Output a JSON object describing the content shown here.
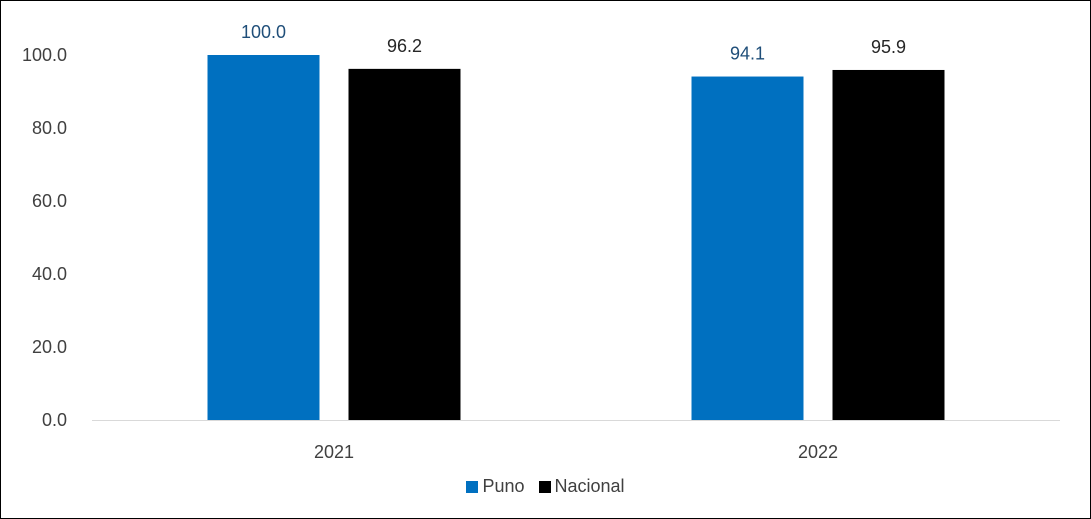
{
  "chart_data": {
    "type": "bar",
    "categories": [
      "2021",
      "2022"
    ],
    "series": [
      {
        "name": "Puno",
        "values": [
          100.0,
          94.1
        ],
        "color": "#0070c0",
        "label_color": "#1f4e79"
      },
      {
        "name": "Nacional",
        "values": [
          96.2,
          95.9
        ],
        "color": "#000000",
        "label_color": "#262626"
      }
    ],
    "data_labels": [
      [
        "100.0",
        "94.1"
      ],
      [
        "96.2",
        "95.9"
      ]
    ],
    "ylim": [
      0,
      100
    ],
    "yticks": [
      "0.0",
      "20.0",
      "40.0",
      "60.0",
      "80.0",
      "100.0"
    ],
    "title": "",
    "xlabel": "",
    "ylabel": "",
    "grid": false,
    "legend_position": "bottom"
  }
}
